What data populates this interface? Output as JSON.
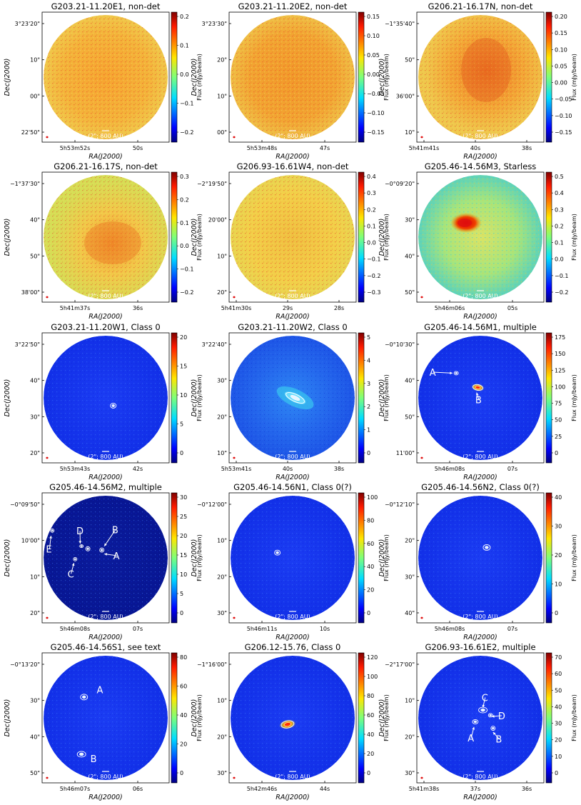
{
  "figure": {
    "scale_bar_label": "(2\"; 800 AU)",
    "xlabel": "RA(J2000)",
    "ylabel": "Dec(J2000)",
    "cbar_label": "Flux (mJy/beam)"
  },
  "panels": [
    {
      "title": "G203.21-11.20E1, non-det",
      "map": "noise",
      "style": "noise1",
      "yticks": [
        "3°23'20\"",
        "10\"",
        "00\"",
        "22'50\""
      ],
      "xticks": [
        "5h53m52s",
        "50s"
      ],
      "cbar_ticks": [
        "0.2",
        "0.1",
        "0.0",
        "−0.1",
        "−0.2"
      ],
      "sources": [],
      "labels": []
    },
    {
      "title": "G203.21-11.20E2, non-det",
      "map": "noise",
      "style": "noise2",
      "yticks": [
        "3°23'30\"",
        "20\"",
        "10\"",
        "00\""
      ],
      "xticks": [
        "5h53m48s",
        "47s"
      ],
      "cbar_ticks": [
        "0.15",
        "0.10",
        "0.05",
        "0.00",
        "−0.05",
        "−0.10",
        "−0.15"
      ],
      "sources": [],
      "labels": []
    },
    {
      "title": "G206.21-16.17N, non-det",
      "map": "noise",
      "style": "noise3",
      "yticks": [
        "−1°35'40\"",
        "50\"",
        "36'00\"",
        "10\""
      ],
      "xticks": [
        "5h41m41s",
        "40s",
        "38s"
      ],
      "cbar_ticks": [
        "0.20",
        "0.15",
        "0.10",
        "0.05",
        "0.00",
        "−0.05",
        "−0.10",
        "−0.15"
      ],
      "sources": [],
      "labels": []
    },
    {
      "title": "G206.21-16.17S, non-det",
      "map": "noise",
      "style": "noise4",
      "yticks": [
        "−1°37'30\"",
        "40\"",
        "50\"",
        "38'00\""
      ],
      "xticks": [
        "5h41m37s",
        "36s"
      ],
      "cbar_ticks": [
        "0.3",
        "0.2",
        "0.1",
        "0.0",
        "−0.1",
        "−0.2"
      ],
      "sources": [],
      "labels": []
    },
    {
      "title": "G206.93-16.61W4, non-det",
      "map": "noise",
      "style": "noise5",
      "yticks": [
        "−2°19'50\"",
        "20'00\"",
        "10\"",
        "20\""
      ],
      "xticks": [
        "5h41m30s",
        "29s",
        "28s"
      ],
      "cbar_ticks": [
        "0.4",
        "0.3",
        "0.2",
        "0.1",
        "0.0",
        "−0.1",
        "−0.2",
        "−0.3"
      ],
      "sources": [],
      "labels": []
    },
    {
      "title": "G205.46-14.56M3, Starless",
      "map": "noise",
      "style": "starless",
      "yticks": [
        "−0°09'20\"",
        "30\"",
        "40\"",
        "50\""
      ],
      "xticks": [
        "5h46m06s",
        "05s"
      ],
      "cbar_ticks": [
        "0.5",
        "0.4",
        "0.3",
        "0.2",
        "0.1",
        "0.0",
        "−0.1",
        "−0.2"
      ],
      "sources": [],
      "labels": []
    },
    {
      "title": "G203.21-11.20W1, Class 0",
      "map": "blue",
      "style": "blue",
      "yticks": [
        "3°22'50\"",
        "40\"",
        "30\"",
        "20\""
      ],
      "xticks": [
        "5h53m43s",
        "42s"
      ],
      "cbar_ticks": [
        "20",
        "15",
        "10",
        "5",
        "0"
      ],
      "sources": [
        {
          "id": "core"
        }
      ],
      "labels": []
    },
    {
      "title": "G203.21-11.20W2, Class 0",
      "map": "blue",
      "style": "bluelight",
      "yticks": [
        "3°22'40\"",
        "30\"",
        "20\"",
        "10\""
      ],
      "xticks": [
        "5h53m41s",
        "40s",
        "38s"
      ],
      "cbar_ticks": [
        "5",
        "4",
        "3",
        "2",
        "1",
        "0"
      ],
      "sources": [
        {
          "id": "core"
        }
      ],
      "labels": []
    },
    {
      "title": "G205.46-14.56M1, multiple",
      "map": "blue",
      "style": "blue",
      "yticks": [
        "−0°10'30\"",
        "40\"",
        "50\"",
        "11'00\""
      ],
      "xticks": [
        "5h46m08s",
        "07s"
      ],
      "cbar_ticks": [
        "175",
        "150",
        "125",
        "100",
        "75",
        "50",
        "25",
        "0"
      ],
      "sources": [
        {
          "id": "A"
        },
        {
          "id": "B"
        }
      ],
      "labels": [
        "A",
        "B"
      ]
    },
    {
      "title": "G205.46-14.56M2, multiple",
      "map": "blue",
      "style": "dark",
      "yticks": [
        "−0°09'50\"",
        "10'00\"",
        "10\"",
        "20\""
      ],
      "xticks": [
        "5h46m08s",
        "07s"
      ],
      "cbar_ticks": [
        "30",
        "25",
        "20",
        "15",
        "10",
        "5",
        "0"
      ],
      "sources": [
        {
          "id": "A"
        },
        {
          "id": "B"
        },
        {
          "id": "C"
        },
        {
          "id": "D"
        },
        {
          "id": "E"
        }
      ],
      "labels": [
        "A",
        "B",
        "C",
        "D",
        "E"
      ]
    },
    {
      "title": "G205.46-14.56N1, Class 0(?)",
      "map": "blue",
      "style": "blue",
      "yticks": [
        "−0°12'00\"",
        "10\"",
        "20\"",
        "30\""
      ],
      "xticks": [
        "5h46m11s",
        "10s"
      ],
      "cbar_ticks": [
        "100",
        "80",
        "60",
        "40",
        "20",
        "0"
      ],
      "sources": [
        {
          "id": "core"
        }
      ],
      "labels": []
    },
    {
      "title": "G205.46-14.56N2, Class 0(?)",
      "map": "blue",
      "style": "blue",
      "yticks": [
        "−0°12'10\"",
        "20\"",
        "30\"",
        "40\""
      ],
      "xticks": [
        "5h46m08s",
        "07s"
      ],
      "cbar_ticks": [
        "40",
        "30",
        "20",
        "10",
        "0"
      ],
      "sources": [
        {
          "id": "core"
        }
      ],
      "labels": []
    },
    {
      "title": "G205.46-14.56S1, see text",
      "map": "blue",
      "style": "blue",
      "yticks": [
        "−0°13'20\"",
        "30\"",
        "40\"",
        "50\""
      ],
      "xticks": [
        "5h46m07s",
        "06s"
      ],
      "cbar_ticks": [
        "80",
        "60",
        "40",
        "20",
        "0"
      ],
      "sources": [
        {
          "id": "A"
        },
        {
          "id": "B"
        }
      ],
      "labels": [
        "A",
        "B"
      ]
    },
    {
      "title": "G206.12-15.76, Class 0",
      "map": "blue",
      "style": "blue",
      "yticks": [
        "−1°16'00\"",
        "10\"",
        "20\"",
        "30\""
      ],
      "xticks": [
        "5h42m46s",
        "44s"
      ],
      "cbar_ticks": [
        "120",
        "100",
        "80",
        "60",
        "40",
        "20",
        "0"
      ],
      "sources": [
        {
          "id": "core"
        }
      ],
      "labels": []
    },
    {
      "title": "G206.93-16.61E2, multiple",
      "map": "blue",
      "style": "blue",
      "yticks": [
        "−2°17'00\"",
        "10\"",
        "20\"",
        "30\""
      ],
      "xticks": [
        "5h41m38s",
        "37s",
        "36s"
      ],
      "cbar_ticks": [
        "70",
        "60",
        "50",
        "40",
        "30",
        "20",
        "10",
        "0"
      ],
      "sources": [
        {
          "id": "A"
        },
        {
          "id": "B"
        },
        {
          "id": "C"
        },
        {
          "id": "D"
        }
      ],
      "labels": [
        "A",
        "B",
        "C",
        "D"
      ]
    }
  ]
}
